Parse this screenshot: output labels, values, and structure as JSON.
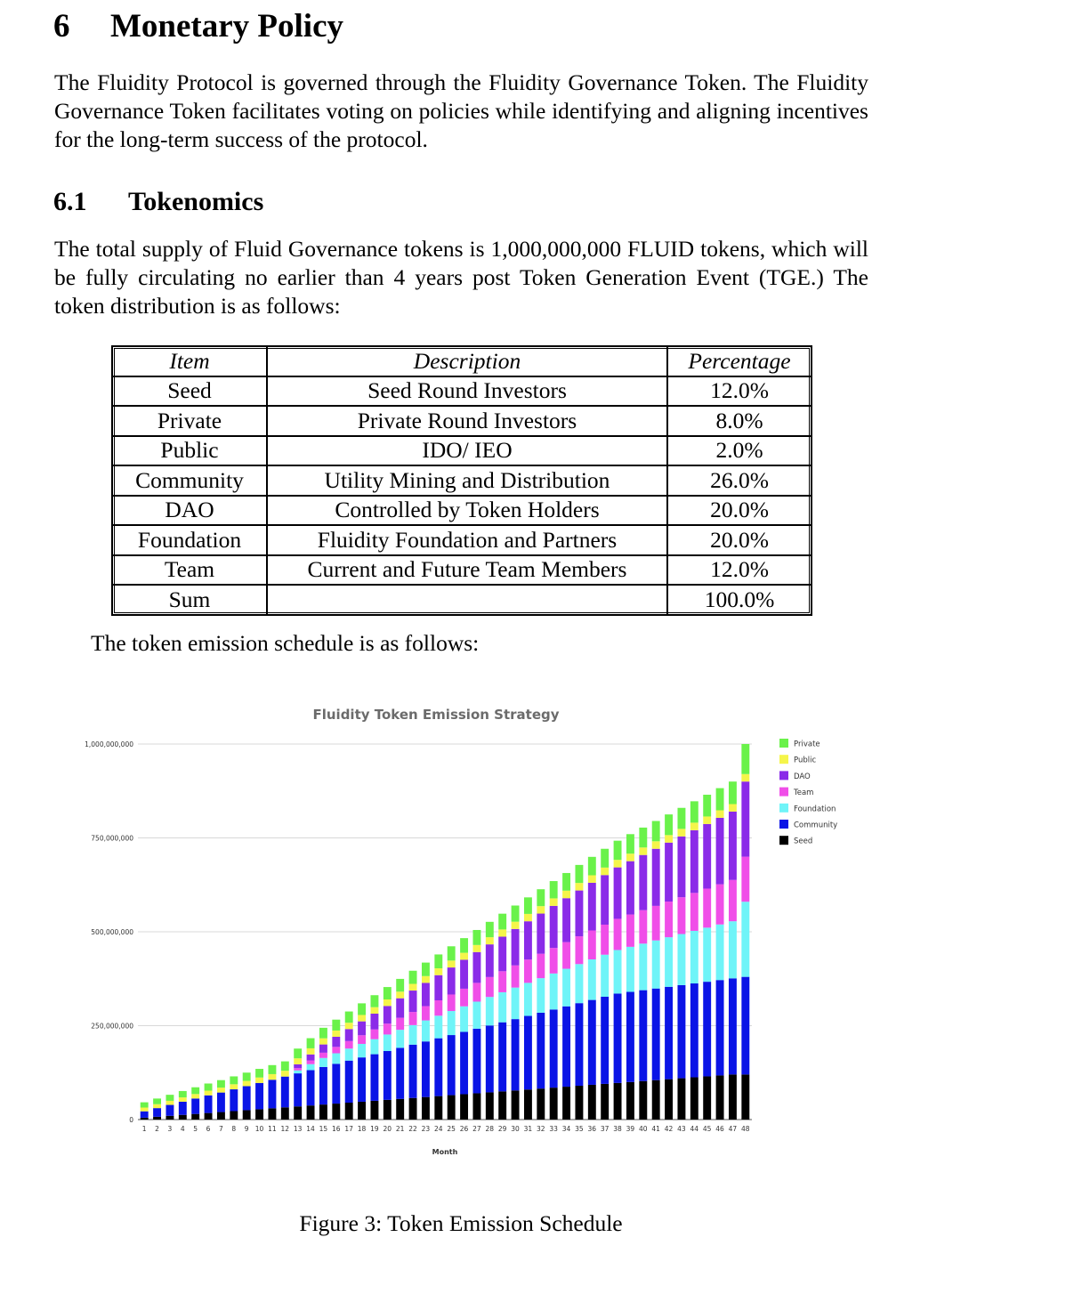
{
  "section": {
    "number": "6",
    "title": "Monetary Policy"
  },
  "intro_paragraph": "The Fluidity Protocol is governed through the Fluidity Governance Token. The Fluidity Governance Token facilitates voting on policies while identifying and aligning incentives for the long-term success of the protocol.",
  "subsection": {
    "number": "6.1",
    "title": "Tokenomics"
  },
  "supply_paragraph": "The total supply of Fluid Governance tokens is 1,000,000,000 FLUID tokens, which will be fully circulating no earlier than 4 years post Token Generation Event (TGE.) The token distribution is as follows:",
  "table": {
    "headers": [
      "Item",
      "Description",
      "Percentage"
    ],
    "rows": [
      [
        "Seed",
        "Seed Round Investors",
        "12.0%"
      ],
      [
        "Private",
        "Private Round Investors",
        "8.0%"
      ],
      [
        "Public",
        "IDO/ IEO",
        "2.0%"
      ],
      [
        "Community",
        "Utility Mining and Distribution",
        "26.0%"
      ],
      [
        "DAO",
        "Controlled by Token Holders",
        "20.0%"
      ],
      [
        "Foundation",
        "Fluidity Foundation and Partners",
        "20.0%"
      ],
      [
        "Team",
        "Current and Future Team Members",
        "12.0%"
      ],
      [
        "Sum",
        "",
        "100.0%"
      ]
    ]
  },
  "emission_intro": "The token emission schedule is as follows:",
  "caption": "Figure 3: Token Emission Schedule",
  "chart_data": {
    "type": "bar",
    "stacked": true,
    "title": "Fluidity Token Emission Strategy",
    "xlabel": "Month",
    "ylabel": "",
    "ylim": [
      0,
      1000000000
    ],
    "yticks": [
      0,
      250000000,
      500000000,
      750000000,
      1000000000
    ],
    "ytick_labels": [
      "0",
      "250,000,000",
      "500,000,000",
      "750,000,000",
      "1,000,000,000"
    ],
    "categories": [
      "1",
      "2",
      "3",
      "4",
      "5",
      "6",
      "7",
      "8",
      "9",
      "10",
      "11",
      "12",
      "13",
      "14",
      "15",
      "16",
      "17",
      "18",
      "19",
      "20",
      "21",
      "22",
      "23",
      "24",
      "25",
      "26",
      "27",
      "28",
      "29",
      "30",
      "31",
      "32",
      "33",
      "34",
      "35",
      "36",
      "37",
      "38",
      "39",
      "40",
      "41",
      "42",
      "43",
      "44",
      "45",
      "46",
      "47",
      "48"
    ],
    "legend_position": "right",
    "series": [
      {
        "name": "Seed",
        "color": "#000000",
        "values": [
          5000000,
          7500000,
          10000000,
          12500000,
          15000000,
          17500000,
          20000000,
          22500000,
          25000000,
          27500000,
          30000000,
          32500000,
          35000000,
          37500000,
          40000000,
          42500000,
          45000000,
          47500000,
          50000000,
          52500000,
          55000000,
          57500000,
          60000000,
          62500000,
          65000000,
          67500000,
          70000000,
          72500000,
          75000000,
          77500000,
          80000000,
          82500000,
          85000000,
          87500000,
          90000000,
          92500000,
          95000000,
          97500000,
          100000000,
          102500000,
          105000000,
          107500000,
          110000000,
          112500000,
          115000000,
          117500000,
          120000000,
          120000000
        ]
      },
      {
        "name": "Community",
        "color": "#0a14e6",
        "values": [
          17000000,
          23000000,
          29000000,
          35000000,
          41000000,
          47000000,
          52000000,
          58000000,
          64000000,
          70000000,
          76000000,
          82000000,
          88000000,
          94000000,
          100000000,
          106000000,
          112000000,
          118000000,
          124000000,
          130000000,
          136000000,
          142000000,
          148000000,
          154000000,
          160000000,
          166000000,
          172000000,
          178000000,
          184000000,
          190000000,
          196000000,
          202000000,
          208000000,
          214000000,
          220000000,
          226000000,
          232000000,
          238000000,
          240000000,
          242000000,
          244000000,
          246000000,
          248000000,
          250000000,
          252000000,
          254000000,
          256000000,
          260000000
        ]
      },
      {
        "name": "Foundation",
        "color": "#6ff4f8",
        "values": [
          0,
          0,
          0,
          0,
          0,
          0,
          0,
          0,
          0,
          0,
          0,
          0,
          8000000,
          16000000,
          24000000,
          28000000,
          32000000,
          36000000,
          40000000,
          44000000,
          48000000,
          52000000,
          56000000,
          60000000,
          64000000,
          68000000,
          72000000,
          76000000,
          80000000,
          84000000,
          88000000,
          92000000,
          96000000,
          100000000,
          104000000,
          108000000,
          112000000,
          116000000,
          120000000,
          124000000,
          128000000,
          132000000,
          136000000,
          140000000,
          144000000,
          148000000,
          152000000,
          200000000
        ]
      },
      {
        "name": "Team",
        "color": "#f04ee8",
        "values": [
          0,
          0,
          0,
          0,
          0,
          0,
          0,
          0,
          0,
          0,
          0,
          0,
          6000000,
          10000000,
          14000000,
          17000000,
          20000000,
          23000000,
          26000000,
          29000000,
          32000000,
          35000000,
          38000000,
          41000000,
          44000000,
          47000000,
          50000000,
          53000000,
          56000000,
          59000000,
          62000000,
          65000000,
          68000000,
          71000000,
          74000000,
          77000000,
          80000000,
          83000000,
          86000000,
          89000000,
          92000000,
          95000000,
          98000000,
          101000000,
          104000000,
          107000000,
          110000000,
          120000000
        ]
      },
      {
        "name": "DAO",
        "color": "#8a2be8",
        "values": [
          0,
          0,
          0,
          0,
          0,
          0,
          0,
          0,
          0,
          0,
          0,
          0,
          10000000,
          16000000,
          22000000,
          27000000,
          32000000,
          37000000,
          42000000,
          47000000,
          52000000,
          57000000,
          62000000,
          67000000,
          72000000,
          77000000,
          82000000,
          87000000,
          92000000,
          97000000,
          102000000,
          107000000,
          112000000,
          117000000,
          122000000,
          127000000,
          132000000,
          137000000,
          142000000,
          147000000,
          152000000,
          157000000,
          162000000,
          167000000,
          172000000,
          177000000,
          182000000,
          200000000
        ]
      },
      {
        "name": "Public",
        "color": "#f5f54a",
        "values": [
          10000000,
          10500000,
          11000000,
          11500000,
          12000000,
          12500000,
          13000000,
          13500000,
          14000000,
          14500000,
          15000000,
          15500000,
          16000000,
          16200000,
          16400000,
          16600000,
          16800000,
          17000000,
          17200000,
          17400000,
          17600000,
          17800000,
          18000000,
          18200000,
          18400000,
          18600000,
          18800000,
          19000000,
          19200000,
          19400000,
          19600000,
          19800000,
          20000000,
          20000000,
          20000000,
          20000000,
          20000000,
          20000000,
          20000000,
          20000000,
          20000000,
          20000000,
          20000000,
          20000000,
          20000000,
          20000000,
          20000000,
          20000000
        ]
      },
      {
        "name": "Private",
        "color": "#6af24a",
        "values": [
          14000000,
          15000000,
          16000000,
          17000000,
          18000000,
          19000000,
          20000000,
          21000000,
          22000000,
          23000000,
          24000000,
          25000000,
          26000000,
          27000000,
          28000000,
          29000000,
          30000000,
          31000000,
          32000000,
          33000000,
          34000000,
          35000000,
          36000000,
          37000000,
          38000000,
          39000000,
          40000000,
          41000000,
          42000000,
          43000000,
          44000000,
          45000000,
          46000000,
          47000000,
          48000000,
          49000000,
          50000000,
          51000000,
          52000000,
          53000000,
          54000000,
          55000000,
          56000000,
          57000000,
          58000000,
          59000000,
          60000000,
          80000000
        ]
      }
    ]
  }
}
